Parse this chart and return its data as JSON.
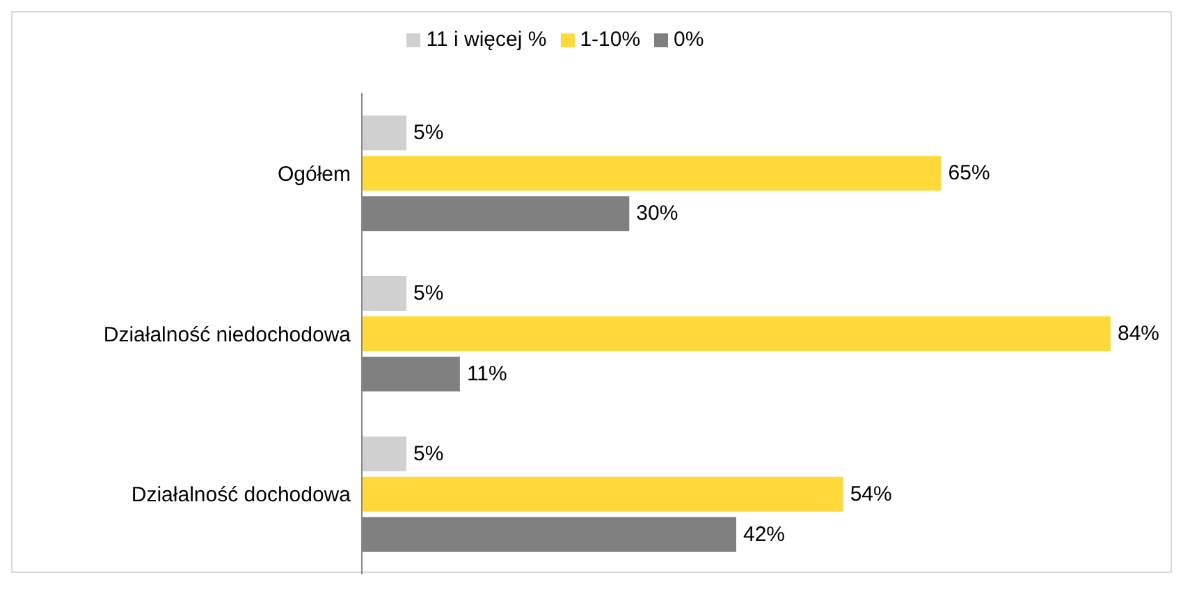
{
  "chart_data": {
    "type": "bar",
    "orientation": "horizontal",
    "categories": [
      "Ogółem",
      "Działalność niedochodowa",
      "Działalność dochodowa"
    ],
    "series": [
      {
        "name": "11 i więcej %",
        "color": "#d0d0d0",
        "values": [
          5,
          5,
          5
        ],
        "value_labels": [
          "5%",
          "5%",
          "5%"
        ]
      },
      {
        "name": "1-10%",
        "color": "#ffd83a",
        "values": [
          65,
          84,
          54
        ],
        "value_labels": [
          "65%",
          "84%",
          "54%"
        ]
      },
      {
        "name": "0%",
        "color": "#808080",
        "values": [
          30,
          11,
          42
        ],
        "value_labels": [
          "30%",
          "11%",
          "42%"
        ]
      }
    ],
    "legend": "top",
    "grid": false
  }
}
